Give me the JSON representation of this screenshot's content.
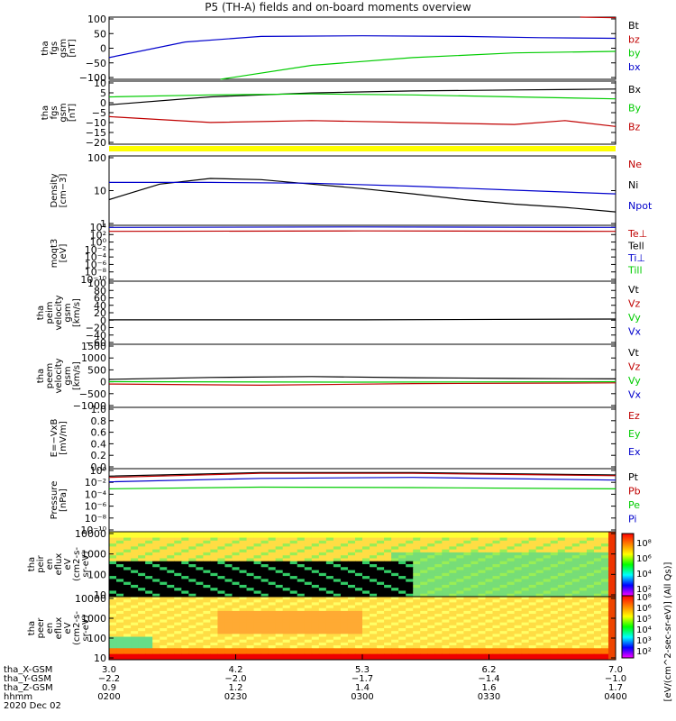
{
  "title": "P5 (TH-A) fields and on-board moments overview",
  "chart_data": [
    {
      "type": "line",
      "ylabel": [
        "tha",
        "fgs",
        "gsm",
        "[nT]"
      ],
      "ylim": [
        -100,
        100
      ],
      "yticks": [
        "100",
        "50",
        "0",
        "−50",
        "−100"
      ],
      "legend": [
        {
          "label": "Bt",
          "color": "#000000"
        },
        {
          "label": "bz",
          "color": "#c00000"
        },
        {
          "label": "by",
          "color": "#00cc00"
        },
        {
          "label": "bx",
          "color": "#0000cc"
        }
      ],
      "series": [
        {
          "name": "bx",
          "color": "#0000cc",
          "x": [
            0,
            0.15,
            0.3,
            0.5,
            0.7,
            0.85,
            1
          ],
          "y": [
            -30,
            20,
            38,
            40,
            38,
            34,
            32
          ]
        },
        {
          "name": "by",
          "color": "#00cc00",
          "x": [
            0.22,
            0.4,
            0.6,
            0.8,
            1
          ],
          "y": [
            -100,
            -55,
            -30,
            -15,
            -10
          ]
        },
        {
          "name": "bz",
          "color": "#c00000",
          "x": [
            0.93,
            1
          ],
          "y": [
            100,
            98
          ]
        }
      ]
    },
    {
      "type": "line",
      "ylabel": [
        "tha",
        "fgs",
        "gsm",
        "[nT]"
      ],
      "ylim": [
        -22,
        10
      ],
      "yticks": [
        "10",
        "5",
        "0",
        "−5",
        "−10",
        "−15",
        "−20"
      ],
      "legend": [
        {
          "label": "Bx",
          "color": "#000000"
        },
        {
          "label": "By",
          "color": "#00cc00"
        },
        {
          "label": "Bz",
          "color": "#c00000"
        }
      ],
      "series": [
        {
          "name": "Bx",
          "color": "#000000",
          "x": [
            0,
            0.2,
            0.4,
            0.6,
            0.8,
            1
          ],
          "y": [
            -2,
            2,
            4,
            5,
            5.5,
            6
          ]
        },
        {
          "name": "By",
          "color": "#00cc00",
          "x": [
            0,
            0.2,
            0.4,
            0.6,
            0.8,
            1
          ],
          "y": [
            2,
            3,
            3.5,
            3,
            2,
            1
          ]
        },
        {
          "name": "Bz",
          "color": "#c00000",
          "x": [
            0,
            0.2,
            0.4,
            0.6,
            0.8,
            0.9,
            1
          ],
          "y": [
            -8,
            -11,
            -10,
            -11,
            -12,
            -10,
            -13
          ]
        }
      ]
    },
    {
      "type": "line",
      "ylabel": [
        "Density",
        "[cm−3]"
      ],
      "yscale": "log",
      "ylim": [
        0.3,
        150
      ],
      "yticks": [
        "100",
        "10",
        "1"
      ],
      "legend": [
        {
          "label": "Ne",
          "color": "#c00000"
        },
        {
          "label": "Ni",
          "color": "#000000"
        },
        {
          "label": "Npot",
          "color": "#0000cc"
        }
      ],
      "series": [
        {
          "name": "Ni",
          "color": "#000000",
          "x": [
            0,
            0.1,
            0.2,
            0.3,
            0.4,
            0.5,
            0.6,
            0.7,
            0.8,
            0.9,
            1
          ],
          "y": [
            3,
            12,
            20,
            18,
            12,
            8,
            5,
            3,
            2,
            1.5,
            1
          ]
        },
        {
          "name": "Npot",
          "color": "#0000cc",
          "x": [
            0,
            0.2,
            0.4,
            0.6,
            0.8,
            1
          ],
          "y": [
            14,
            14,
            13,
            10,
            7,
            5
          ]
        }
      ]
    },
    {
      "type": "line",
      "ylabel": [
        "moqt3",
        "[eV]"
      ],
      "yscale": "log",
      "ylim": [
        1e-10,
        10000
      ],
      "yticks": [
        "10⁴",
        "10²",
        "10⁰",
        "10⁻²",
        "10⁻⁴",
        "10⁻⁶",
        "10⁻⁸",
        "10⁻¹⁰"
      ],
      "legend": [
        {
          "label": "Te⊥",
          "color": "#c00000"
        },
        {
          "label": "Tell",
          "color": "#000000"
        },
        {
          "label": "Ti⊥",
          "color": "#0000cc"
        },
        {
          "label": "Till",
          "color": "#00cc00"
        }
      ],
      "series": [
        {
          "name": "Ti",
          "color": "#0000cc",
          "x": [
            0,
            0.5,
            1
          ],
          "y": [
            3000,
            4000,
            3000
          ]
        },
        {
          "name": "Te",
          "color": "#c00000",
          "x": [
            0,
            0.5,
            1
          ],
          "y": [
            300,
            400,
            300
          ]
        }
      ]
    },
    {
      "type": "line",
      "ylabel": [
        "tha",
        "peim",
        "velocity",
        "gsm",
        "[km/s]"
      ],
      "ylim": [
        -60,
        100
      ],
      "yticks": [
        "100",
        "80",
        "60",
        "40",
        "20",
        "0",
        "−20",
        "−40",
        "−60"
      ],
      "legend": [
        {
          "label": "Vt",
          "color": "#000000"
        },
        {
          "label": "Vz",
          "color": "#c00000"
        },
        {
          "label": "Vy",
          "color": "#00cc00"
        },
        {
          "label": "Vx",
          "color": "#0000cc"
        }
      ],
      "series": [
        {
          "name": "Vt",
          "color": "#000000",
          "x": [
            0,
            0.5,
            1
          ],
          "y": [
            2,
            2,
            4
          ]
        }
      ]
    },
    {
      "type": "line",
      "ylabel": [
        "tha",
        "peem",
        "velocity",
        "gsm",
        "[km/s]"
      ],
      "ylim": [
        -1100,
        1600
      ],
      "yticks": [
        "1500",
        "1000",
        "500",
        "0",
        "−500",
        "−1000"
      ],
      "legend": [
        {
          "label": "Vt",
          "color": "#000000"
        },
        {
          "label": "Vz",
          "color": "#c00000"
        },
        {
          "label": "Vy",
          "color": "#00cc00"
        },
        {
          "label": "Vx",
          "color": "#0000cc"
        }
      ],
      "series": [
        {
          "name": "Vt",
          "color": "#000000",
          "x": [
            0,
            0.2,
            0.4,
            0.6,
            0.8,
            1
          ],
          "y": [
            100,
            180,
            220,
            170,
            140,
            120
          ]
        },
        {
          "name": "Vz",
          "color": "#c00000",
          "x": [
            0,
            0.3,
            0.6,
            1
          ],
          "y": [
            -100,
            -150,
            -80,
            -50
          ]
        },
        {
          "name": "Vy",
          "color": "#00cc00",
          "x": [
            0,
            0.5,
            1
          ],
          "y": [
            0,
            -20,
            0
          ]
        }
      ]
    },
    {
      "type": "line",
      "ylabel": [
        "E=−VxB",
        "[mV/m]"
      ],
      "ylim": [
        0,
        1
      ],
      "yticks": [
        "1.0",
        "0.8",
        "0.6",
        "0.4",
        "0.2",
        "0.0"
      ],
      "legend": [
        {
          "label": "Ez",
          "color": "#c00000"
        },
        {
          "label": "Ey",
          "color": "#00cc00"
        },
        {
          "label": "Ex",
          "color": "#0000cc"
        }
      ],
      "series": []
    },
    {
      "type": "line",
      "ylabel": [
        "Pressure",
        "[nPa]"
      ],
      "yscale": "log",
      "ylim": [
        1e-10,
        10
      ],
      "yticks": [
        "10⁰",
        "10⁻²",
        "10⁻⁴",
        "10⁻⁶",
        "10⁻⁸",
        "10⁻¹⁰"
      ],
      "legend": [
        {
          "label": "Pt",
          "color": "#000000"
        },
        {
          "label": "Pb",
          "color": "#c00000"
        },
        {
          "label": "Pe",
          "color": "#00cc00"
        },
        {
          "label": "Pi",
          "color": "#0000cc"
        }
      ],
      "series": [
        {
          "name": "Pt",
          "color": "#000000",
          "x": [
            0,
            0.3,
            0.6,
            1
          ],
          "y": [
            0.5,
            2,
            2,
            0.8
          ]
        },
        {
          "name": "Pb",
          "color": "#c00000",
          "x": [
            0,
            0.3,
            0.6,
            1
          ],
          "y": [
            0.3,
            1.5,
            1.5,
            0.6
          ]
        },
        {
          "name": "Pi",
          "color": "#0000cc",
          "x": [
            0,
            0.3,
            0.6,
            1
          ],
          "y": [
            0.05,
            0.2,
            0.3,
            0.1
          ]
        },
        {
          "name": "Pe",
          "color": "#00cc00",
          "x": [
            0,
            0.3,
            0.6,
            1
          ],
          "y": [
            0.003,
            0.006,
            0.005,
            0.003
          ]
        }
      ]
    },
    {
      "type": "heatmap",
      "ylabel": [
        "tha",
        "peir",
        "en",
        "eflux",
        "eV",
        "(cm2-s-",
        "sr-eV)"
      ],
      "yscale": "log",
      "ylim": [
        5,
        30000
      ],
      "yticks": [
        "10000",
        "1000",
        "100",
        "10"
      ]
    },
    {
      "type": "heatmap",
      "ylabel": [
        "tha",
        "peer",
        "en",
        "eflux",
        "eV",
        "(cm2-s-",
        "sr-eV)"
      ],
      "yscale": "log",
      "ylim": [
        5,
        30000
      ],
      "yticks": [
        "10000",
        "1000",
        "100",
        "10"
      ]
    }
  ],
  "colorbar": {
    "label": "[eV/(cm^2-sec-sr-eV)] (All Qs)]",
    "ticks_top": [
      "10⁸",
      "10⁶",
      "10⁴",
      "10²"
    ],
    "ticks_bottom": [
      "10⁸",
      "10⁶",
      "10⁵",
      "10⁴",
      "10³",
      "10²"
    ]
  },
  "xaxis": {
    "row_labels": [
      "tha_X-GSM",
      "tha_Y-GSM",
      "tha_Z-GSM",
      "hhmm",
      "2020 Dec 02"
    ],
    "ticks": [
      {
        "x": "3.0",
        "y": "−2.2",
        "z": "0.9",
        "t": "0200"
      },
      {
        "x": "4.2",
        "y": "−2.0",
        "z": "1.2",
        "t": "0230"
      },
      {
        "x": "5.3",
        "y": "−1.7",
        "z": "1.4",
        "t": "0300"
      },
      {
        "x": "6.2",
        "y": "−1.4",
        "z": "1.6",
        "t": "0330"
      },
      {
        "x": "7.0",
        "y": "−1.0",
        "z": "1.7",
        "t": "0400"
      }
    ]
  }
}
